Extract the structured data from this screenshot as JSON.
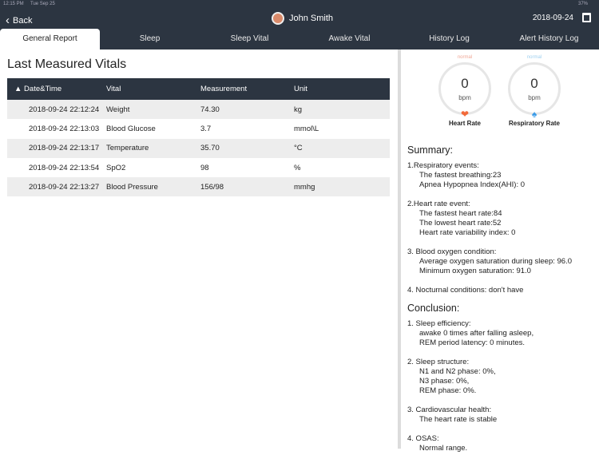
{
  "status": {
    "time": "12:15 PM",
    "day": "Tue Sep 25",
    "battery": "37%"
  },
  "header": {
    "back": "Back",
    "user": "John Smith",
    "date": "2018-09-24"
  },
  "tabs": [
    "General Report",
    "Sleep",
    "Sleep Vital",
    "Awake Vital",
    "History Log",
    "Alert History Log"
  ],
  "left": {
    "title": "Last Measured Vitals",
    "columns": [
      "Date&Time",
      "Vital",
      "Measurement",
      "Unit"
    ],
    "rows": [
      [
        "2018-09-24 22:12:24",
        "Weight",
        "74.30",
        "kg"
      ],
      [
        "2018-09-24 22:13:03",
        "Blood Glucose",
        "3.7",
        "mmol\\L"
      ],
      [
        "2018-09-24 22:13:17",
        "Temperature",
        "35.70",
        "°C"
      ],
      [
        "2018-09-24 22:13:54",
        "SpO2",
        "98",
        "%"
      ],
      [
        "2018-09-24 22:13:27",
        "Blood Pressure",
        "156/98",
        "mmhg"
      ]
    ]
  },
  "gauges": [
    {
      "status": "normal",
      "value": "0",
      "unit": "bpm",
      "label": "Heart Rate",
      "color": "#f0a898"
    },
    {
      "status": "normal",
      "value": "0",
      "unit": "bpm",
      "label": "Respiratory Rate",
      "color": "#9fd0f0"
    }
  ],
  "summary": {
    "title": "Summary:",
    "sections": [
      {
        "head": "1.Respiratory events:",
        "lines": [
          "The fastest breathing:23",
          "Apnea Hypopnea Index(AHI): 0"
        ]
      },
      {
        "head": "2.Heart rate event:",
        "lines": [
          "The fastest heart rate:84",
          "The lowest heart rate:52",
          "Heart rate variability index: 0"
        ]
      },
      {
        "head": "3. Blood oxygen condition:",
        "lines": [
          "Average oxygen saturation during sleep: 96.0",
          "Minimum oxygen saturation: 91.0"
        ]
      },
      {
        "head": "4. Nocturnal conditions: don't have",
        "lines": []
      }
    ]
  },
  "conclusion": {
    "title": "Conclusion:",
    "sections": [
      {
        "head": "1. Sleep efficiency:",
        "lines": [
          "awake 0 times after falling asleep,",
          "REM period latency: 0 minutes."
        ]
      },
      {
        "head": "2. Sleep structure:",
        "lines": [
          "N1 and N2 phase: 0%,",
          "N3 phase: 0%,",
          "REM phase: 0%."
        ]
      },
      {
        "head": "3. Cardiovascular health:",
        "lines": [
          "The heart rate is stable"
        ]
      },
      {
        "head": "4. OSAS:",
        "lines": [
          "Normal range."
        ]
      }
    ]
  }
}
